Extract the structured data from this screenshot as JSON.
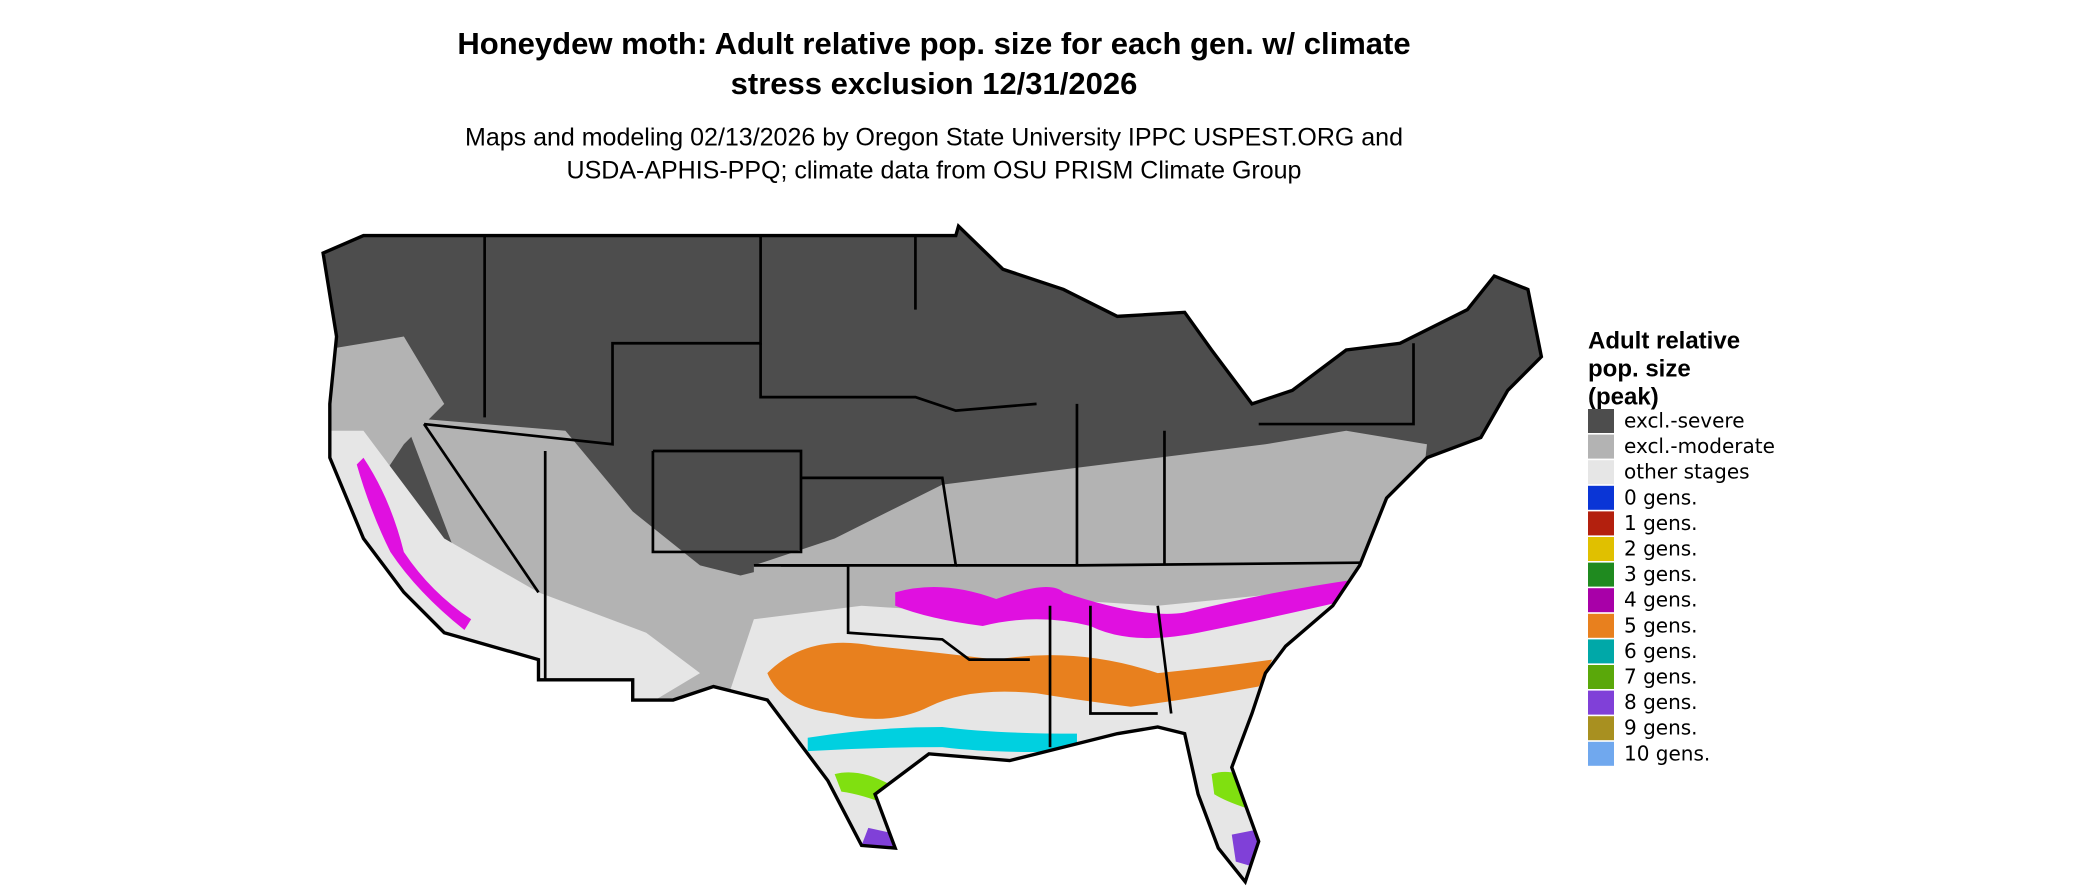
{
  "title": [
    "Honeydew moth: Adult relative pop. size for each gen. w/ climate",
    "stress exclusion 12/31/2026"
  ],
  "subtitle": [
    "Maps and modeling 02/13/2026 by Oregon State University IPPC USPEST.ORG and",
    "USDA-APHIS-PPQ; climate data from OSU PRISM Climate Group"
  ],
  "legend": {
    "title": [
      "Adult relative",
      "pop. size",
      "(peak)"
    ],
    "items": [
      {
        "label": "excl.-severe",
        "color": "#4d4d4d"
      },
      {
        "label": "excl.-moderate",
        "color": "#b3b3b3"
      },
      {
        "label": "other stages",
        "color": "#e6e6e6"
      },
      {
        "label": "0 gens.",
        "color": "#0a35d6"
      },
      {
        "label": "1 gens.",
        "color": "#b3200e"
      },
      {
        "label": "2 gens.",
        "color": "#e0c000"
      },
      {
        "label": "3 gens.",
        "color": "#1f8a1f"
      },
      {
        "label": "4 gens.",
        "color": "#a800a8"
      },
      {
        "label": "5 gens.",
        "color": "#e8801e"
      },
      {
        "label": "6 gens.",
        "color": "#00a8a8"
      },
      {
        "label": "7 gens.",
        "color": "#5aa80a"
      },
      {
        "label": "8 gens.",
        "color": "#8040d8"
      },
      {
        "label": "9 gens.",
        "color": "#a89020"
      },
      {
        "label": "10 gens.",
        "color": "#70a8ee"
      }
    ]
  }
}
